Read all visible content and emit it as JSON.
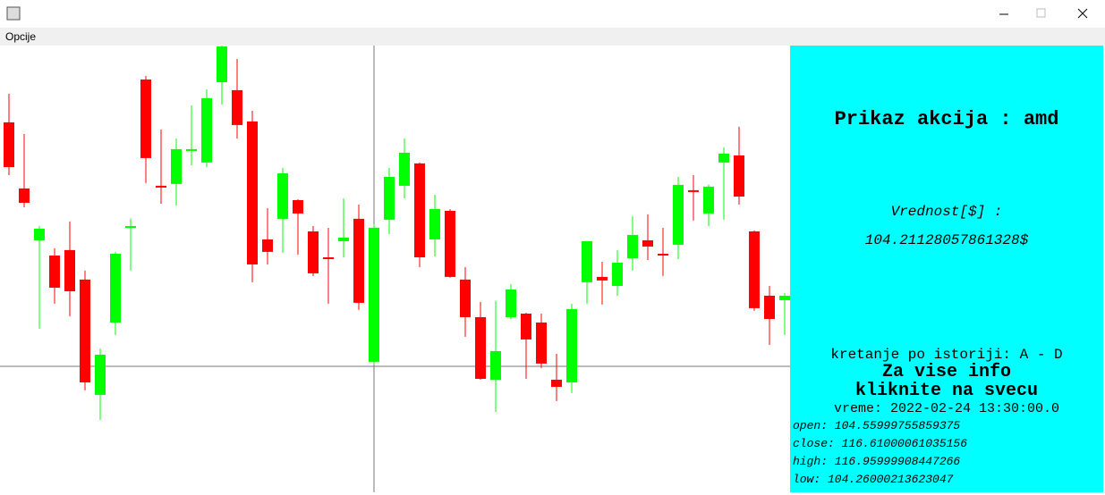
{
  "window": {
    "menu": "Opcije"
  },
  "chart_data": {
    "type": "candlestick",
    "up_color": "#00ff00",
    "down_color": "#ff0000",
    "ylim": [
      92.83,
      132.98
    ],
    "open": [
      126.08,
      120.14,
      115.48,
      114.11,
      114.6,
      111.95,
      101.59,
      108.09,
      116.6,
      129.93,
      120.38,
      120.54,
      123.51,
      122.47,
      129.69,
      128.97,
      126.16,
      115.56,
      117.41,
      119.09,
      116.28,
      113.95,
      115.4,
      117.41,
      104.56,
      117.33,
      120.38,
      122.39,
      115.56,
      118.13,
      111.95,
      108.57,
      102.95,
      108.57,
      108.89,
      108.09,
      102.95,
      102.71,
      111.71,
      112.19,
      111.38,
      113.87,
      115.48,
      114.27,
      115.08,
      119.98,
      117.89,
      122.47,
      123.11,
      116.28,
      110.5,
      110.1
    ],
    "high": [
      128.65,
      125.03,
      116.76,
      114.76,
      117.17,
      112.75,
      105.76,
      114.44,
      117.41,
      130.25,
      125.44,
      124.63,
      127.6,
      129.05,
      132.98,
      131.78,
      127.12,
      118.37,
      121.98,
      119.17,
      116.76,
      116.6,
      119.25,
      118.69,
      116.96,
      121.98,
      124.63,
      122.47,
      119.57,
      118.29,
      113.07,
      109.94,
      110.02,
      111.54,
      108.97,
      108.89,
      105.28,
      109.78,
      115.4,
      113.55,
      114.6,
      117.65,
      117.81,
      116.6,
      121.18,
      121.34,
      120.46,
      123.83,
      125.68,
      116.36,
      111.38,
      110.74
    ],
    "low": [
      121.34,
      118.45,
      107.53,
      109.78,
      108.65,
      101.99,
      99.34,
      106.97,
      112.75,
      120.62,
      118.77,
      118.61,
      122.22,
      122.06,
      127.68,
      124.63,
      111.71,
      113.31,
      114.36,
      114.19,
      112.27,
      109.78,
      113.95,
      109.22,
      104.26,
      116.04,
      119.25,
      113.07,
      114.03,
      112.11,
      106.81,
      102.95,
      100.06,
      108.41,
      103.03,
      104.0,
      101.03,
      101.75,
      109.78,
      109.7,
      110.5,
      112.75,
      113.71,
      112.27,
      113.79,
      117.25,
      116.76,
      117.33,
      118.69,
      109.14,
      106.08,
      106.97
    ],
    "close": [
      122.06,
      118.85,
      116.52,
      111.22,
      110.9,
      102.71,
      105.2,
      114.27,
      116.76,
      122.87,
      120.22,
      123.67,
      123.67,
      128.25,
      132.9,
      125.84,
      113.31,
      114.44,
      121.5,
      117.89,
      112.51,
      113.87,
      115.72,
      109.86,
      116.61,
      121.18,
      123.35,
      113.95,
      118.29,
      112.19,
      108.57,
      103.03,
      105.52,
      111.06,
      106.57,
      104.4,
      102.31,
      109.3,
      115.4,
      111.87,
      113.47,
      115.96,
      114.92,
      114.11,
      120.46,
      119.82,
      120.3,
      123.27,
      119.41,
      109.38,
      108.41,
      110.5
    ]
  },
  "panel": {
    "title": "Prikaz akcija : amd",
    "value_label": "Vrednost[$] :",
    "value": "104.21128057861328$",
    "nav": "kretanje po istoriji: A - D",
    "info1": "Za vise info",
    "info2": "kliknite na svecu",
    "time": "vreme: 2022-02-24 13:30:00.0",
    "open": "open: 104.55999755859375",
    "close": "close: 116.61000061035156",
    "high": "high: 116.95999908447266",
    "low": "low: 104.26000213623047"
  }
}
